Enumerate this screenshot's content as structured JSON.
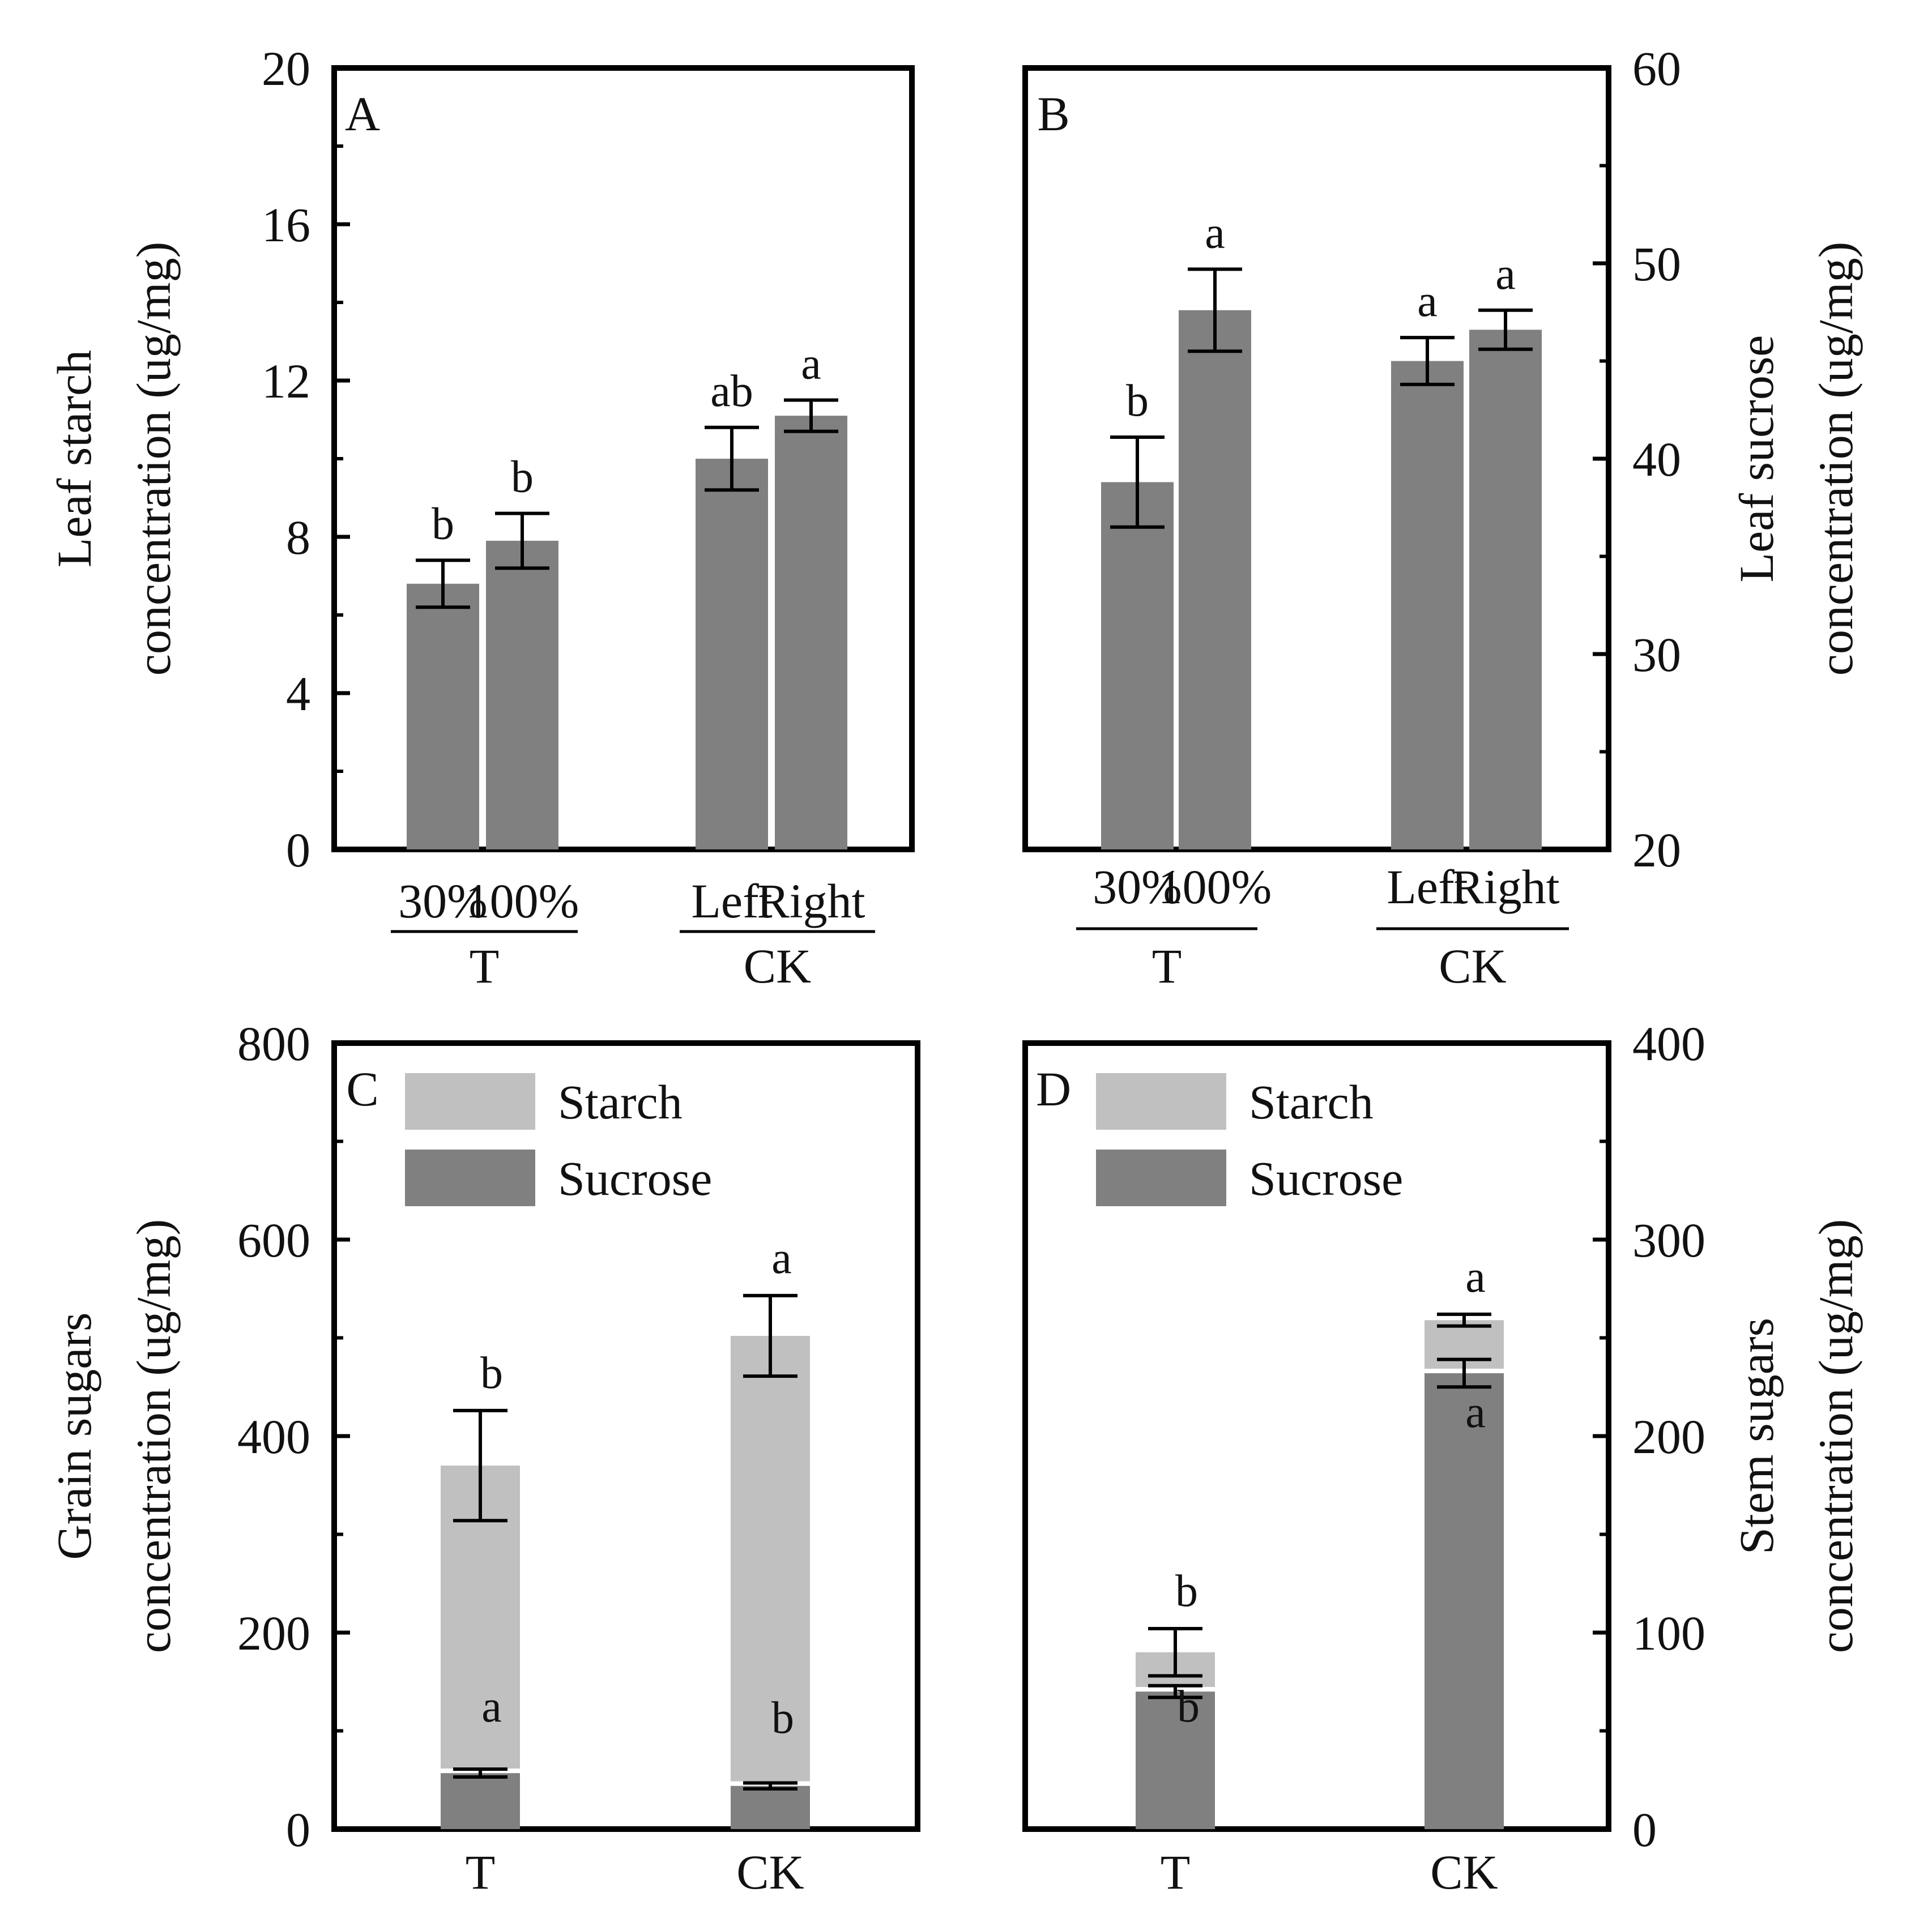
{
  "chart_data": [
    {
      "panel": "A",
      "type": "bar",
      "ylabel": [
        "Leaf starch",
        "concentration (ug/mg)"
      ],
      "y_axis_side": "left",
      "ylim": [
        0,
        20
      ],
      "yticks": [
        0,
        4,
        8,
        12,
        16,
        20
      ],
      "minor_ticks": true,
      "groups": [
        {
          "label": "T",
          "categories": [
            "30%",
            "100%"
          ]
        },
        {
          "label": "CK",
          "categories": [
            "Left",
            "Right"
          ]
        }
      ],
      "bars": [
        {
          "category": "30%",
          "group": "T",
          "value": 6.8,
          "error": 0.6,
          "sig": "b"
        },
        {
          "category": "100%",
          "group": "T",
          "value": 7.9,
          "error": 0.7,
          "sig": "b"
        },
        {
          "category": "Left",
          "group": "CK",
          "value": 10.0,
          "error": 0.8,
          "sig": "ab"
        },
        {
          "category": "Right",
          "group": "CK",
          "value": 11.1,
          "error": 0.4,
          "sig": "a"
        }
      ],
      "bar_color": "#808080"
    },
    {
      "panel": "B",
      "type": "bar",
      "ylabel": [
        "Leaf sucrose",
        "concentration (ug/mg)"
      ],
      "y_axis_side": "right",
      "ylim": [
        20,
        60
      ],
      "yticks": [
        20,
        30,
        40,
        50,
        60
      ],
      "minor_ticks": true,
      "groups": [
        {
          "label": "T",
          "categories": [
            "30%",
            "100%"
          ]
        },
        {
          "label": "CK",
          "categories": [
            "Left",
            "Right"
          ]
        }
      ],
      "bars": [
        {
          "category": "30%",
          "group": "T",
          "value": 38.8,
          "error": 2.3,
          "sig": "b"
        },
        {
          "category": "100%",
          "group": "T",
          "value": 47.6,
          "error": 2.1,
          "sig": "a"
        },
        {
          "category": "Left",
          "group": "CK",
          "value": 45.0,
          "error": 1.2,
          "sig": "a"
        },
        {
          "category": "Right",
          "group": "CK",
          "value": 46.6,
          "error": 1.0,
          "sig": "a"
        }
      ],
      "bar_color": "#808080"
    },
    {
      "panel": "C",
      "type": "bar",
      "stacked": true,
      "ylabel": [
        "Grain sugars",
        "concentration (ug/mg)"
      ],
      "y_axis_side": "left",
      "ylim": [
        0,
        800
      ],
      "yticks": [
        0,
        200,
        400,
        600,
        800
      ],
      "minor_ticks": true,
      "categories": [
        "T",
        "CK"
      ],
      "legend": {
        "position": "top-left",
        "entries": [
          "Starch",
          "Sucrose"
        ]
      },
      "series": [
        {
          "name": "Sucrose",
          "color": "#808080",
          "values": [
            57,
            44
          ],
          "errors": [
            4,
            3
          ],
          "sig": [
            "a",
            "b"
          ]
        },
        {
          "name": "Starch",
          "color": "#c0c0c0",
          "values": [
            313,
            458
          ],
          "errors": [
            56,
            41
          ],
          "sig": [
            "b",
            "a"
          ]
        }
      ]
    },
    {
      "panel": "D",
      "type": "bar",
      "stacked": true,
      "ylabel": [
        "Stem sugars",
        "concentration (ug/mg)"
      ],
      "y_axis_side": "right",
      "ylim": [
        0,
        400
      ],
      "yticks": [
        0,
        100,
        200,
        300,
        400
      ],
      "minor_ticks": true,
      "categories": [
        "T",
        "CK"
      ],
      "legend": {
        "position": "top-left",
        "entries": [
          "Starch",
          "Sucrose"
        ]
      },
      "series": [
        {
          "name": "Sucrose",
          "color": "#808080",
          "values": [
            70,
            232
          ],
          "errors": [
            3,
            7
          ],
          "sig": [
            "b",
            "a"
          ]
        },
        {
          "name": "Starch",
          "color": "#c0c0c0",
          "values": [
            20,
            27
          ],
          "errors": [
            12,
            3
          ],
          "sig": [
            "b",
            "a"
          ]
        }
      ]
    }
  ]
}
